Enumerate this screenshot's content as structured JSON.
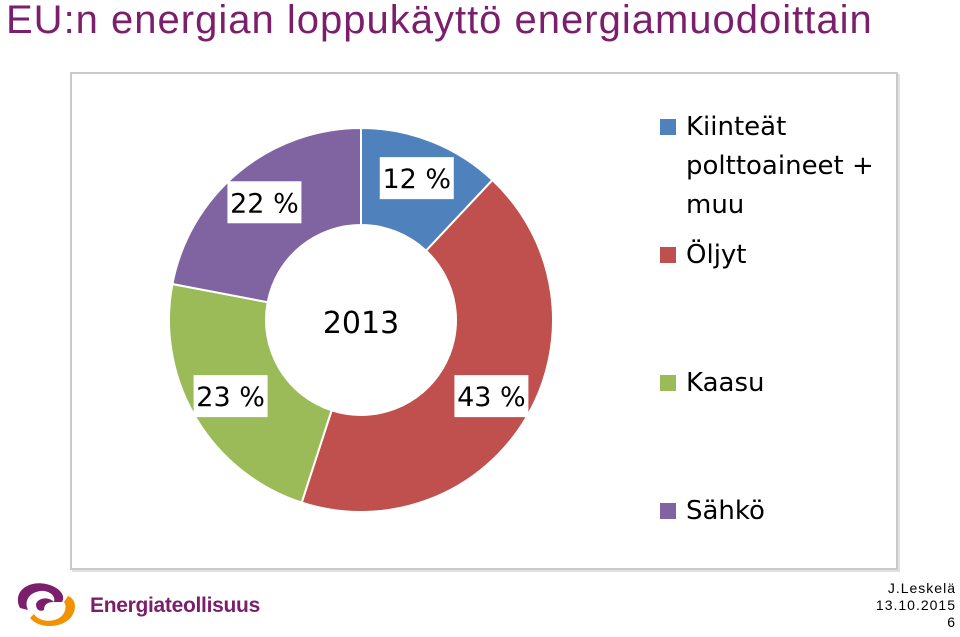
{
  "slide": {
    "title": "EU:n energian loppukäyttö energiamuodoittain"
  },
  "chart_data": {
    "type": "pie",
    "variant": "donut",
    "center_label": "2013",
    "categories": [
      "Kiinteät polttoaineet + muu",
      "Öljyt",
      "Kaasu",
      "Sähkö"
    ],
    "legend_lines": [
      [
        "Kiinteät",
        "polttoaineet +",
        "muu"
      ],
      [
        "Öljyt"
      ],
      [
        "Kaasu"
      ],
      [
        "Sähkö"
      ]
    ],
    "values": [
      12,
      43,
      23,
      22
    ],
    "labels": [
      "12 %",
      "43 %",
      "23 %",
      "22 %"
    ],
    "unit": "%",
    "colors": [
      "#4f81bd",
      "#c0504d",
      "#9bbb59",
      "#8064a2"
    ],
    "legend_position": "right"
  },
  "footer": {
    "logo_text": "Energiateollisuus",
    "author": "J.Leskelä",
    "date": "13.10.2015",
    "page_number": "6"
  },
  "theme": {
    "title_color": "#7b1e6b",
    "logo_purple": "#7b1e6b",
    "logo_orange": "#f39200"
  }
}
